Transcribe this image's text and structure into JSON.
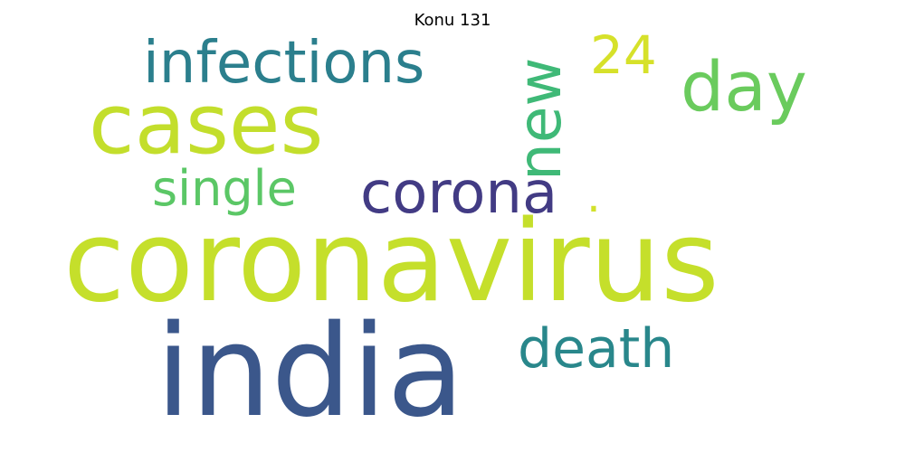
{
  "title": "Konu 131",
  "words": [
    {
      "text": "coronavirus",
      "color": "#c5df2b"
    },
    {
      "text": "india",
      "color": "#3b578b"
    },
    {
      "text": "cases",
      "color": "#c3de2c"
    },
    {
      "text": "infections",
      "color": "#2b7f8d"
    },
    {
      "text": "new",
      "color": "#3fb977"
    },
    {
      "text": "24",
      "color": "#d6e12a"
    },
    {
      "text": "day",
      "color": "#6acb5d"
    },
    {
      "text": "single",
      "color": "#5bc766"
    },
    {
      "text": "corona",
      "color": "#423b84"
    },
    {
      "text": ".",
      "color": "#d2e12b"
    },
    {
      "text": "death",
      "color": "#29878b"
    }
  ]
}
